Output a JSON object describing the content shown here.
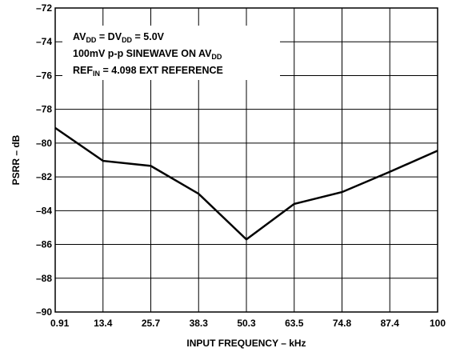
{
  "chart_data": {
    "type": "line",
    "xlabel": "INPUT FREQUENCY – kHz",
    "ylabel": "PSRR – dB",
    "categories": [
      "0.91",
      "13.4",
      "25.7",
      "38.3",
      "50.3",
      "63.5",
      "74.8",
      "87.4",
      "100"
    ],
    "x_axis": "categorical, evenly spaced",
    "ylim": [
      -90,
      -72
    ],
    "yticks": [
      "–72",
      "–74",
      "–76",
      "–78",
      "–80",
      "–82",
      "–84",
      "–86",
      "–88",
      "–90"
    ],
    "grid": true,
    "series": [
      {
        "points": [
          {
            "x": "0.91",
            "y": -79.1
          },
          {
            "x": "13.4",
            "y": -81.05
          },
          {
            "x": "25.7",
            "y": -81.35
          },
          {
            "x": "38.3",
            "y": -83.0
          },
          {
            "x": "50.3",
            "y": -85.7
          },
          {
            "x": "63.5",
            "y": -83.6
          },
          {
            "x": "74.8",
            "y": -82.9
          },
          {
            "x": "87.4",
            "y": -81.7
          },
          {
            "x": "100",
            "y": -80.45
          }
        ]
      }
    ],
    "annotations": [
      {
        "parts": [
          {
            "t": "AV"
          },
          {
            "t": "DD",
            "sub": true
          },
          {
            "t": " = DV"
          },
          {
            "t": "DD",
            "sub": true
          },
          {
            "t": " = 5.0V"
          }
        ]
      },
      {
        "parts": [
          {
            "t": "100mV p-p SINEWAVE ON AV"
          },
          {
            "t": "DD",
            "sub": true
          }
        ]
      },
      {
        "parts": [
          {
            "t": "REF"
          },
          {
            "t": "IN",
            "sub": true
          },
          {
            "t": " = 4.098 EXT REFERENCE"
          }
        ]
      }
    ]
  }
}
